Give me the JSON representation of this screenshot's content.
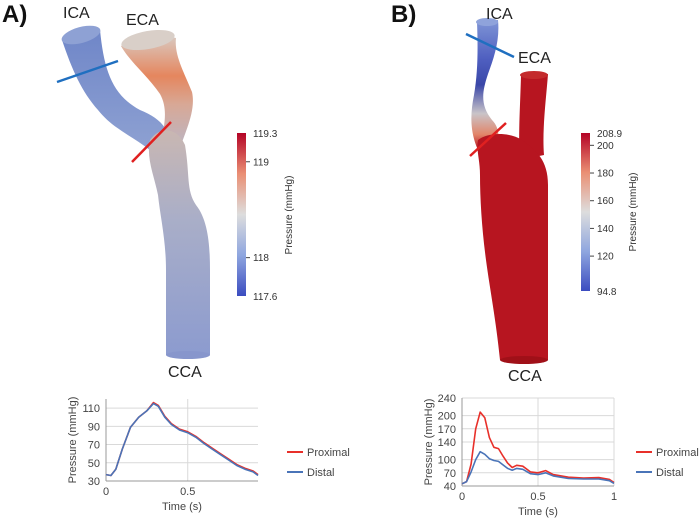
{
  "panel_a": {
    "letter": "A)",
    "labels": {
      "ica": "ICA",
      "eca": "ECA",
      "cca": "CCA"
    },
    "colorbar": {
      "title": "Pressure (mmHg)",
      "min": 117.6,
      "max": 119.3,
      "min_label": "117.6",
      "max_label": "119.3",
      "ticks": [
        {
          "label": "118",
          "value": 118
        },
        {
          "label": "119",
          "value": 119
        }
      ]
    }
  },
  "panel_b": {
    "letter": "B)",
    "labels": {
      "ica": "ICA",
      "eca": "ECA",
      "cca": "CCA"
    },
    "colorbar": {
      "title": "Pressure (mmHg)",
      "min": 94.8,
      "max": 208.9,
      "min_label": "94.8",
      "max_label": "208.9",
      "ticks": [
        {
          "label": "120",
          "value": 120
        },
        {
          "label": "140",
          "value": 140
        },
        {
          "label": "160",
          "value": 160
        },
        {
          "label": "180",
          "value": 180
        },
        {
          "label": "200",
          "value": 200
        }
      ]
    }
  },
  "colors": {
    "proximal": "#e8302a",
    "distal": "#4a74b8",
    "cmap_low": "#3b4cc0",
    "cmap_mid": "#dddddd",
    "cmap_high": "#b40426",
    "grid": "#d9d9d9",
    "ica_line": "#1f6fc0",
    "cut_line": "#e02020"
  },
  "chart_data": [
    {
      "type": "line",
      "xlabel": "Time (s)",
      "ylabel": "Pressure (mmHg)",
      "xlim": [
        0,
        0.93
      ],
      "ylim": [
        30,
        120
      ],
      "xticks": [
        {
          "label": "0",
          "value": 0
        },
        {
          "label": "0.5",
          "value": 0.5
        }
      ],
      "yticks": [
        {
          "label": "30",
          "value": 30
        },
        {
          "label": "50",
          "value": 50
        },
        {
          "label": "70",
          "value": 70
        },
        {
          "label": "90",
          "value": 90
        },
        {
          "label": "110",
          "value": 110
        }
      ],
      "legend": "right",
      "series": [
        {
          "name": "Proximal",
          "x": [
            0,
            0.03,
            0.06,
            0.1,
            0.15,
            0.2,
            0.25,
            0.29,
            0.32,
            0.36,
            0.4,
            0.45,
            0.5,
            0.55,
            0.6,
            0.65,
            0.7,
            0.75,
            0.8,
            0.85,
            0.9,
            0.93
          ],
          "y": [
            37,
            36,
            43,
            65,
            89,
            100,
            107,
            116,
            113,
            101,
            93,
            87,
            84,
            79,
            72,
            66,
            60,
            54,
            48,
            44,
            41,
            37
          ]
        },
        {
          "name": "Distal",
          "x": [
            0,
            0.03,
            0.06,
            0.1,
            0.15,
            0.2,
            0.25,
            0.29,
            0.32,
            0.36,
            0.4,
            0.45,
            0.5,
            0.55,
            0.6,
            0.65,
            0.7,
            0.75,
            0.8,
            0.85,
            0.9,
            0.93
          ],
          "y": [
            37,
            36,
            43,
            65,
            89,
            100,
            107,
            115,
            112,
            100,
            92,
            86,
            83,
            78,
            71,
            65,
            59,
            53,
            47,
            43,
            40,
            36
          ]
        }
      ]
    },
    {
      "type": "line",
      "xlabel": "Time (s)",
      "ylabel": "Pressure (mmHg)",
      "xlim": [
        0,
        1
      ],
      "ylim": [
        40,
        240
      ],
      "xticks": [
        {
          "label": "0",
          "value": 0
        },
        {
          "label": "0.5",
          "value": 0.5
        },
        {
          "label": "1",
          "value": 1
        }
      ],
      "yticks": [
        {
          "label": "40",
          "value": 40
        },
        {
          "label": "70",
          "value": 70
        },
        {
          "label": "100",
          "value": 100
        },
        {
          "label": "140",
          "value": 140
        },
        {
          "label": "170",
          "value": 170
        },
        {
          "label": "200",
          "value": 200
        },
        {
          "label": "240",
          "value": 240
        }
      ],
      "legend": "right",
      "series": [
        {
          "name": "Proximal",
          "x": [
            0,
            0.03,
            0.06,
            0.09,
            0.12,
            0.15,
            0.18,
            0.21,
            0.24,
            0.27,
            0.3,
            0.33,
            0.36,
            0.4,
            0.45,
            0.5,
            0.55,
            0.6,
            0.7,
            0.8,
            0.9,
            0.97,
            1
          ],
          "y": [
            45,
            50,
            90,
            170,
            208,
            195,
            150,
            128,
            125,
            108,
            92,
            82,
            87,
            85,
            72,
            70,
            75,
            66,
            60,
            58,
            59,
            55,
            48
          ]
        },
        {
          "name": "Distal",
          "x": [
            0,
            0.03,
            0.06,
            0.09,
            0.12,
            0.15,
            0.18,
            0.21,
            0.24,
            0.27,
            0.3,
            0.33,
            0.36,
            0.4,
            0.45,
            0.5,
            0.55,
            0.6,
            0.7,
            0.8,
            0.9,
            0.97,
            1
          ],
          "y": [
            45,
            50,
            72,
            100,
            118,
            112,
            102,
            98,
            96,
            88,
            80,
            76,
            80,
            78,
            68,
            66,
            70,
            63,
            57,
            56,
            56,
            52,
            46
          ]
        }
      ]
    }
  ]
}
